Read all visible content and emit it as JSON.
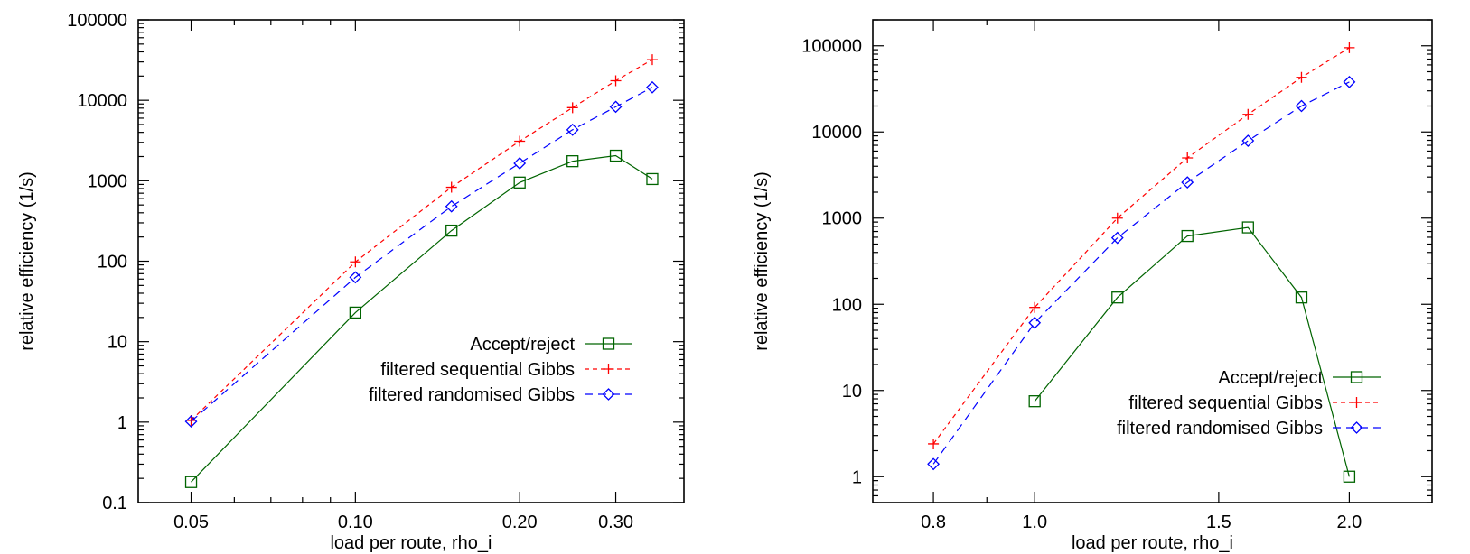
{
  "chart_data": [
    {
      "type": "line",
      "xlabel": "load per route, rho_i",
      "ylabel": "relative efficiency (1/s)",
      "x_scale": "log",
      "y_scale": "log",
      "xlim": [
        0.04,
        0.4
      ],
      "ylim": [
        0.1,
        100000
      ],
      "xticks": [
        {
          "value": 0.05,
          "label": "0.05"
        },
        {
          "value": 0.1,
          "label": "0.10"
        },
        {
          "value": 0.2,
          "label": "0.20"
        },
        {
          "value": 0.3,
          "label": "0.30"
        }
      ],
      "xminor": [
        0.06,
        0.07,
        0.08,
        0.09
      ],
      "yticks": [
        {
          "value": 0.1,
          "label": "0.1"
        },
        {
          "value": 1,
          "label": "1"
        },
        {
          "value": 10,
          "label": "10"
        },
        {
          "value": 100,
          "label": "100"
        },
        {
          "value": 1000,
          "label": "1000"
        },
        {
          "value": 10000,
          "label": "10000"
        },
        {
          "value": 100000,
          "label": "100000"
        }
      ],
      "grid": false,
      "legend_position": "bottom-right",
      "series": [
        {
          "name": "Accept/reject",
          "color": "#006400",
          "dash": "",
          "marker": "square",
          "points": [
            [
              0.05,
              0.18
            ],
            [
              0.1,
              23
            ],
            [
              0.15,
              240
            ],
            [
              0.2,
              950
            ],
            [
              0.25,
              1750
            ],
            [
              0.3,
              2050
            ],
            [
              0.35,
              1050
            ]
          ]
        },
        {
          "name": "filtered sequential Gibbs",
          "color": "#ff0000",
          "dash": "5,4",
          "marker": "plus",
          "points": [
            [
              0.05,
              1.05
            ],
            [
              0.1,
              98
            ],
            [
              0.15,
              830
            ],
            [
              0.2,
              3100
            ],
            [
              0.25,
              8100
            ],
            [
              0.3,
              17500
            ],
            [
              0.35,
              32000
            ]
          ]
        },
        {
          "name": "filtered randomised Gibbs",
          "color": "#0000ff",
          "dash": "9,6",
          "marker": "diamond",
          "points": [
            [
              0.05,
              1.02
            ],
            [
              0.1,
              63
            ],
            [
              0.15,
              480
            ],
            [
              0.2,
              1650
            ],
            [
              0.25,
              4300
            ],
            [
              0.3,
              8300
            ],
            [
              0.35,
              14500
            ]
          ]
        }
      ]
    },
    {
      "type": "line",
      "xlabel": "load per route, rho_i",
      "ylabel": "relative efficiency (1/s)",
      "x_scale": "log",
      "y_scale": "log",
      "xlim": [
        0.7,
        2.4
      ],
      "ylim": [
        0.5,
        200000
      ],
      "xticks": [
        {
          "value": 0.8,
          "label": "0.8"
        },
        {
          "value": 1.0,
          "label": "1.0"
        },
        {
          "value": 1.5,
          "label": "1.5"
        },
        {
          "value": 2.0,
          "label": "2.0"
        }
      ],
      "xminor": [
        0.9
      ],
      "yticks": [
        {
          "value": 1,
          "label": "1"
        },
        {
          "value": 10,
          "label": "10"
        },
        {
          "value": 100,
          "label": "100"
        },
        {
          "value": 1000,
          "label": "1000"
        },
        {
          "value": 10000,
          "label": "10000"
        },
        {
          "value": 100000,
          "label": "100000"
        }
      ],
      "grid": false,
      "legend_position": "bottom-right",
      "series": [
        {
          "name": "Accept/reject",
          "color": "#006400",
          "dash": "",
          "marker": "square",
          "points": [
            [
              1.0,
              7.5
            ],
            [
              1.2,
              120
            ],
            [
              1.4,
              620
            ],
            [
              1.6,
              780
            ],
            [
              1.8,
              120
            ],
            [
              2.0,
              1.0
            ]
          ]
        },
        {
          "name": "filtered sequential Gibbs",
          "color": "#ff0000",
          "dash": "5,4",
          "marker": "plus",
          "points": [
            [
              0.8,
              2.4
            ],
            [
              1.0,
              92
            ],
            [
              1.2,
              1000
            ],
            [
              1.4,
              5000
            ],
            [
              1.6,
              16000
            ],
            [
              1.8,
              43000
            ],
            [
              2.0,
              95000
            ]
          ]
        },
        {
          "name": "filtered randomised Gibbs",
          "color": "#0000ff",
          "dash": "9,6",
          "marker": "diamond",
          "points": [
            [
              0.8,
              1.4
            ],
            [
              1.0,
              61
            ],
            [
              1.2,
              590
            ],
            [
              1.4,
              2600
            ],
            [
              1.6,
              7900
            ],
            [
              1.8,
              20000
            ],
            [
              2.0,
              38000
            ]
          ]
        }
      ]
    }
  ]
}
